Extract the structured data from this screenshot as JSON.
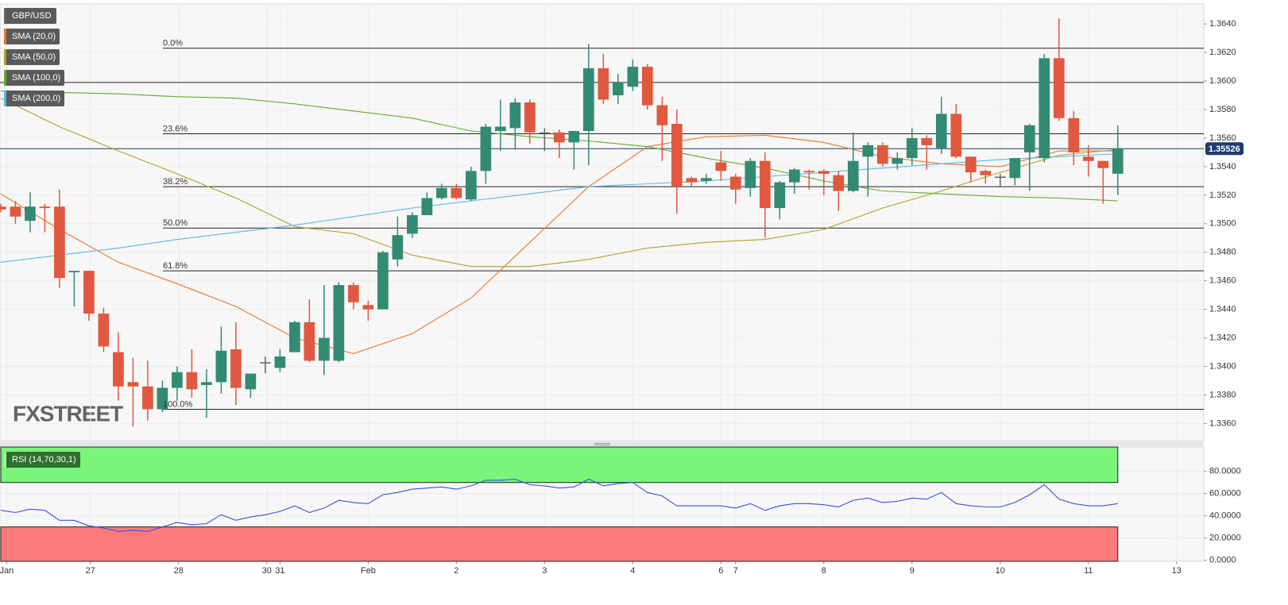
{
  "chart_data": [
    {
      "type": "candlestick",
      "name": "GBP/USD",
      "watermark": "FXSTREET",
      "up_color": "#338a73",
      "down_color": "#e0583f",
      "x": [
        0,
        1,
        2,
        3,
        4,
        5,
        6,
        7,
        8,
        9,
        10,
        11,
        12,
        13,
        14,
        15,
        16,
        17,
        18,
        19,
        20,
        21,
        22,
        23,
        24,
        25,
        26,
        27,
        28,
        29,
        30,
        31,
        32,
        33,
        34,
        35,
        36,
        37,
        38,
        39,
        40,
        41,
        42,
        43,
        44,
        45,
        46,
        47,
        48,
        49,
        50,
        51,
        52,
        53,
        54,
        55,
        56,
        57,
        58,
        59,
        60,
        61,
        62,
        63,
        64,
        65,
        66,
        67,
        68,
        69,
        70,
        71,
        72,
        73,
        74,
        75,
        76
      ],
      "open": [
        1.3512,
        1.3512,
        1.3502,
        1.3512,
        1.3512,
        1.3466,
        1.3467,
        1.3437,
        1.341,
        1.3389,
        1.3386,
        1.337,
        1.3385,
        1.3396,
        1.3387,
        1.3389,
        1.3412,
        1.3384,
        1.3403,
        1.3399,
        1.341,
        1.3431,
        1.3404,
        1.3404,
        1.3457,
        1.3443,
        1.344,
        1.3475,
        1.3493,
        1.3506,
        1.3518,
        1.3525,
        1.3517,
        1.3537,
        1.3565,
        1.3567,
        1.3585,
        1.3564,
        1.3564,
        1.3557,
        1.3565,
        1.3609,
        1.359,
        1.3596,
        1.361,
        1.3583,
        1.357,
        1.3532,
        1.353,
        1.3543,
        1.3533,
        1.3525,
        1.3544,
        1.3511,
        1.3529,
        1.3537,
        1.3537,
        1.3534,
        1.3523,
        1.3547,
        1.3555,
        1.3542,
        1.3546,
        1.356,
        1.3553,
        1.3577,
        1.3547,
        1.3537,
        1.3533,
        1.3532,
        1.355,
        1.3546,
        1.3616,
        1.3574,
        1.3547,
        1.3544,
        1.3535
      ],
      "high": [
        1.3514,
        1.3516,
        1.3522,
        1.3514,
        1.3524,
        1.3467,
        1.3467,
        1.3441,
        1.3424,
        1.3406,
        1.3404,
        1.339,
        1.34,
        1.3412,
        1.3398,
        1.3428,
        1.3431,
        1.3395,
        1.3407,
        1.3412,
        1.3432,
        1.3447,
        1.3457,
        1.3459,
        1.3459,
        1.3446,
        1.3481,
        1.3505,
        1.3508,
        1.3522,
        1.3528,
        1.3528,
        1.354,
        1.357,
        1.3587,
        1.3588,
        1.3587,
        1.3567,
        1.3566,
        1.3565,
        1.3626,
        1.3619,
        1.3605,
        1.3615,
        1.3612,
        1.3589,
        1.358,
        1.3533,
        1.3535,
        1.3551,
        1.3535,
        1.3546,
        1.355,
        1.353,
        1.3539,
        1.3538,
        1.3538,
        1.3537,
        1.3564,
        1.3557,
        1.3557,
        1.355,
        1.3567,
        1.3562,
        1.3589,
        1.3584,
        1.3547,
        1.3538,
        1.3535,
        1.3546,
        1.357,
        1.3619,
        1.3644,
        1.3579,
        1.3555,
        1.3544,
        1.3569
      ],
      "low": [
        1.3508,
        1.35,
        1.3494,
        1.3494,
        1.3455,
        1.3442,
        1.3432,
        1.341,
        1.3376,
        1.3358,
        1.3362,
        1.3368,
        1.3376,
        1.3378,
        1.3364,
        1.3381,
        1.3373,
        1.3378,
        1.3395,
        1.3396,
        1.341,
        1.3403,
        1.3394,
        1.3403,
        1.344,
        1.3432,
        1.344,
        1.347,
        1.349,
        1.3506,
        1.3517,
        1.3517,
        1.3516,
        1.3528,
        1.3551,
        1.3552,
        1.3556,
        1.3551,
        1.3546,
        1.3538,
        1.3541,
        1.3584,
        1.3584,
        1.3593,
        1.358,
        1.3544,
        1.3507,
        1.3526,
        1.3528,
        1.353,
        1.3514,
        1.3519,
        1.349,
        1.3503,
        1.3521,
        1.3524,
        1.352,
        1.3509,
        1.3522,
        1.3519,
        1.354,
        1.3538,
        1.3541,
        1.3538,
        1.3549,
        1.3546,
        1.3529,
        1.3528,
        1.3526,
        1.3527,
        1.3523,
        1.3543,
        1.3572,
        1.3541,
        1.3533,
        1.3514,
        1.352
      ],
      "close": [
        1.351,
        1.3505,
        1.3512,
        1.3511,
        1.3462,
        1.3467,
        1.3437,
        1.3414,
        1.3386,
        1.3386,
        1.337,
        1.3385,
        1.3396,
        1.3384,
        1.3389,
        1.3411,
        1.3385,
        1.3395,
        1.3403,
        1.3407,
        1.3431,
        1.3404,
        1.342,
        1.3457,
        1.3445,
        1.344,
        1.348,
        1.3492,
        1.3506,
        1.3518,
        1.3525,
        1.3518,
        1.3537,
        1.3568,
        1.3568,
        1.3585,
        1.3564,
        1.3564,
        1.3557,
        1.3565,
        1.3609,
        1.3587,
        1.3599,
        1.361,
        1.3583,
        1.3569,
        1.3526,
        1.3529,
        1.3532,
        1.3537,
        1.3524,
        1.3544,
        1.3511,
        1.3529,
        1.3538,
        1.3536,
        1.3535,
        1.3523,
        1.3544,
        1.3555,
        1.3542,
        1.3546,
        1.356,
        1.3555,
        1.3577,
        1.3547,
        1.3536,
        1.3534,
        1.3533,
        1.3546,
        1.3569,
        1.3616,
        1.3574,
        1.355,
        1.3544,
        1.3539,
        1.3553
      ],
      "overlays": [
        {
          "name": "SMA (20,0)",
          "color": "#e8792f",
          "x": [
            0,
            4,
            8,
            12,
            16,
            20,
            24,
            28,
            32,
            36,
            40,
            44,
            48,
            52,
            56,
            60,
            64,
            68,
            72,
            76
          ],
          "values": [
            1.3521,
            1.3496,
            1.3473,
            1.3458,
            1.3442,
            1.342,
            1.3409,
            1.3423,
            1.3448,
            1.3487,
            1.3526,
            1.3554,
            1.3561,
            1.3562,
            1.3557,
            1.3547,
            1.3542,
            1.354,
            1.3551,
            1.3551
          ]
        },
        {
          "name": "SMA (50,0)",
          "color": "#b3a027",
          "x": [
            0,
            4,
            8,
            12,
            16,
            20,
            24,
            28,
            32,
            36,
            40,
            44,
            48,
            52,
            56,
            60,
            64,
            68,
            72,
            76
          ],
          "values": [
            1.3588,
            1.3568,
            1.3551,
            1.3535,
            1.3518,
            1.3498,
            1.3493,
            1.3478,
            1.347,
            1.347,
            1.3475,
            1.3483,
            1.3487,
            1.3489,
            1.3496,
            1.3511,
            1.3523,
            1.3536,
            1.3548,
            1.3552
          ]
        },
        {
          "name": "SMA (100,0)",
          "color": "#5fae2e",
          "x": [
            0,
            4,
            8,
            12,
            16,
            20,
            24,
            28,
            32,
            36,
            40,
            44,
            48,
            52,
            56,
            60,
            64,
            68,
            72,
            76
          ],
          "values": [
            1.3593,
            1.3592,
            1.3591,
            1.3589,
            1.3588,
            1.3584,
            1.3579,
            1.3574,
            1.3565,
            1.3561,
            1.3558,
            1.3554,
            1.3546,
            1.3539,
            1.353,
            1.3523,
            1.3521,
            1.3519,
            1.3518,
            1.3516
          ]
        },
        {
          "name": "SMA (200,0)",
          "color": "#5bb6ea",
          "x": [
            0,
            4,
            8,
            12,
            16,
            20,
            24,
            28,
            32,
            36,
            40,
            44,
            48,
            52,
            56,
            60,
            64,
            68,
            72,
            76
          ],
          "values": [
            1.3473,
            1.3478,
            1.3483,
            1.3489,
            1.3494,
            1.3499,
            1.3505,
            1.3511,
            1.3516,
            1.3521,
            1.3526,
            1.3528,
            1.353,
            1.3533,
            1.3536,
            1.3539,
            1.3542,
            1.3545,
            1.3547,
            1.3549
          ]
        }
      ],
      "levels": [
        {
          "label": "0.0%",
          "value": 1.3623
        },
        {
          "label": "23.6%",
          "value": 1.3563
        },
        {
          "label": "38.2%",
          "value": 1.3526
        },
        {
          "label": "50.0%",
          "value": 1.3497
        },
        {
          "label": "61.8%",
          "value": 1.3467
        },
        {
          "label": "100.0%",
          "value": 1.337
        }
      ],
      "hlines": [
        1.3599
      ],
      "last_price": 1.35526,
      "xlim": [
        -0.05,
        81.85
      ],
      "ylim": [
        1.3348,
        1.3654
      ],
      "xticks": [
        {
          "value": 0.4,
          "label": "Jan"
        },
        {
          "value": 6.1,
          "label": "27"
        },
        {
          "value": 12.1,
          "label": "28"
        },
        {
          "value": 18.1,
          "label": "30"
        },
        {
          "value": 19,
          "label": "31"
        },
        {
          "value": 25,
          "label": "Feb"
        },
        {
          "value": 31,
          "label": "2"
        },
        {
          "value": 37,
          "label": "3"
        },
        {
          "value": 43,
          "label": "4"
        },
        {
          "value": 49,
          "label": "6"
        },
        {
          "value": 50,
          "label": "7"
        },
        {
          "value": 56,
          "label": "8"
        },
        {
          "value": 62,
          "label": "9"
        },
        {
          "value": 68,
          "label": "10"
        },
        {
          "value": 74,
          "label": "11"
        },
        {
          "value": 80,
          "label": "13"
        }
      ],
      "yticks": [
        {
          "value": 1.336,
          "label": "1.3360"
        },
        {
          "value": 1.338,
          "label": "1.3380"
        },
        {
          "value": 1.34,
          "label": "1.3400"
        },
        {
          "value": 1.342,
          "label": "1.3420"
        },
        {
          "value": 1.344,
          "label": "1.3440"
        },
        {
          "value": 1.346,
          "label": "1.3460"
        },
        {
          "value": 1.348,
          "label": "1.3480"
        },
        {
          "value": 1.35,
          "label": "1.3500"
        },
        {
          "value": 1.352,
          "label": "1.3520"
        },
        {
          "value": 1.354,
          "label": "1.3540"
        },
        {
          "value": 1.356,
          "label": "1.3560"
        },
        {
          "value": 1.358,
          "label": "1.3580"
        },
        {
          "value": 1.36,
          "label": "1.3600"
        },
        {
          "value": 1.362,
          "label": "1.3620"
        },
        {
          "value": 1.364,
          "label": "1.3640"
        }
      ],
      "grid": true
    },
    {
      "type": "line",
      "name": "RSI (14,70,30,1)",
      "color": "#3553e6",
      "overbought": 70,
      "oversold": 30,
      "x": [
        0,
        1,
        2,
        3,
        4,
        5,
        6,
        7,
        8,
        9,
        10,
        11,
        12,
        13,
        14,
        15,
        16,
        17,
        18,
        19,
        20,
        21,
        22,
        23,
        24,
        25,
        26,
        27,
        28,
        29,
        30,
        31,
        32,
        33,
        34,
        35,
        36,
        37,
        38,
        39,
        40,
        41,
        42,
        43,
        44,
        45,
        46,
        47,
        48,
        49,
        50,
        51,
        52,
        53,
        54,
        55,
        56,
        57,
        58,
        59,
        60,
        61,
        62,
        63,
        64,
        65,
        66,
        67,
        68,
        69,
        70,
        71,
        72,
        73,
        74,
        75,
        76
      ],
      "values": [
        45,
        43,
        46,
        45,
        36,
        36,
        31,
        29,
        26,
        27,
        26,
        30,
        34,
        32,
        33,
        41,
        36,
        39,
        41,
        44,
        49,
        43,
        47,
        54,
        52,
        51,
        59,
        61,
        64,
        65,
        66,
        64,
        67,
        72,
        72,
        73,
        68,
        67,
        65,
        66,
        73,
        67,
        69,
        70,
        61,
        58,
        49,
        49,
        49,
        49,
        47,
        51,
        45,
        49,
        51,
        51,
        50,
        48,
        54,
        56,
        52,
        53,
        56,
        55,
        61,
        51,
        49,
        48,
        48,
        52,
        59,
        68,
        55,
        51,
        49,
        49,
        51
      ],
      "xlim": [
        -0.05,
        81.85
      ],
      "ylim": [
        -1,
        102
      ],
      "yticks": [
        {
          "value": 0,
          "label": "0.0000"
        },
        {
          "value": 20,
          "label": "20.0000"
        },
        {
          "value": 40,
          "label": "40.0000"
        },
        {
          "value": 60,
          "label": "60.0000"
        },
        {
          "value": 80,
          "label": "80.0000"
        }
      ],
      "grid": true
    }
  ]
}
